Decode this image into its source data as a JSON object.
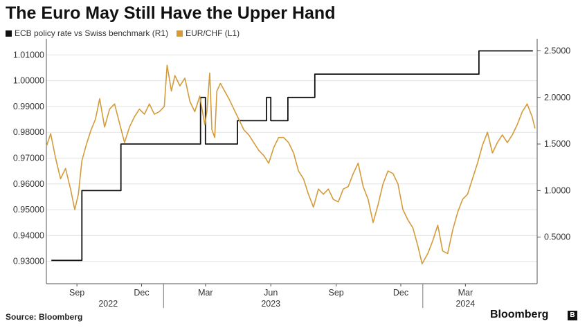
{
  "title": "The Euro May Still Have the Upper Hand",
  "legend": [
    {
      "label": "ECB policy rate vs Swiss benchmark (R1)",
      "color": "#111111"
    },
    {
      "label": "EUR/CHF (L1)",
      "color": "#d39b3a"
    }
  ],
  "source": "Source: Bloomberg",
  "brand": "Bloomberg",
  "brand_badge": "B",
  "chart_data": {
    "type": "line",
    "x_range": [
      "2022-07-20",
      "2024-06-10"
    ],
    "x_ticks": [
      {
        "date": "2022-09-01",
        "label": "Sep"
      },
      {
        "date": "2022-12-01",
        "label": "Dec"
      },
      {
        "date": "2023-03-01",
        "label": "Mar"
      },
      {
        "date": "2023-06-01",
        "label": "Jun"
      },
      {
        "date": "2023-09-01",
        "label": "Sep"
      },
      {
        "date": "2023-12-01",
        "label": "Dec"
      },
      {
        "date": "2024-03-01",
        "label": "Mar"
      }
    ],
    "year_labels": [
      {
        "date": "2022-10-15",
        "label": "2022"
      },
      {
        "date": "2023-06-01",
        "label": "2023"
      },
      {
        "date": "2024-03-01",
        "label": "2024"
      }
    ],
    "year_separators": [
      "2023-01-01",
      "2024-01-01"
    ],
    "left_axis": {
      "min": 0.9213,
      "max": 1.0152,
      "ticks": [
        "0.93000",
        "0.94000",
        "0.95000",
        "0.96000",
        "0.97000",
        "0.98000",
        "0.99000",
        "1.00000",
        "1.01000"
      ]
    },
    "right_axis": {
      "min": 0.0,
      "max": 2.6,
      "ticks": [
        "0.5000",
        "1.0000",
        "1.5000",
        "2.0000",
        "2.5000"
      ]
    },
    "grid": true,
    "legend_position": "top-left",
    "series": [
      {
        "name": "ECB policy rate vs Swiss benchmark (R1)",
        "axis": "right",
        "color": "#111111",
        "step": true,
        "points": [
          [
            "2022-07-27",
            0.25
          ],
          [
            "2022-09-08",
            1.0
          ],
          [
            "2022-11-02",
            1.5
          ],
          [
            "2022-12-21",
            1.5
          ],
          [
            "2023-02-08",
            1.5
          ],
          [
            "2023-02-22",
            2.0
          ],
          [
            "2023-03-01",
            1.5
          ],
          [
            "2023-04-15",
            1.75
          ],
          [
            "2023-05-26",
            2.0
          ],
          [
            "2023-06-01",
            1.75
          ],
          [
            "2023-06-25",
            2.0
          ],
          [
            "2023-08-02",
            2.25
          ],
          [
            "2024-03-20",
            2.5
          ],
          [
            "2024-06-04",
            2.5
          ]
        ]
      },
      {
        "name": "EUR/CHF (L1)",
        "axis": "left",
        "color": "#d39b3a",
        "step": false,
        "points": [
          [
            "2022-07-20",
            0.9745
          ],
          [
            "2022-07-26",
            0.9795
          ],
          [
            "2022-08-02",
            0.97
          ],
          [
            "2022-08-09",
            0.962
          ],
          [
            "2022-08-16",
            0.966
          ],
          [
            "2022-08-23",
            0.958
          ],
          [
            "2022-08-29",
            0.95
          ],
          [
            "2022-09-03",
            0.956
          ],
          [
            "2022-09-08",
            0.969
          ],
          [
            "2022-09-14",
            0.975
          ],
          [
            "2022-09-21",
            0.981
          ],
          [
            "2022-09-27",
            0.985
          ],
          [
            "2022-10-03",
            0.993
          ],
          [
            "2022-10-10",
            0.982
          ],
          [
            "2022-10-17",
            0.989
          ],
          [
            "2022-10-24",
            0.991
          ],
          [
            "2022-10-31",
            0.9835
          ],
          [
            "2022-11-07",
            0.976
          ],
          [
            "2022-11-14",
            0.982
          ],
          [
            "2022-11-21",
            0.986
          ],
          [
            "2022-11-28",
            0.989
          ],
          [
            "2022-12-05",
            0.987
          ],
          [
            "2022-12-12",
            0.991
          ],
          [
            "2022-12-19",
            0.987
          ],
          [
            "2022-12-26",
            0.988
          ],
          [
            "2023-01-02",
            0.99
          ],
          [
            "2023-01-06",
            1.006
          ],
          [
            "2023-01-12",
            0.996
          ],
          [
            "2023-01-17",
            1.002
          ],
          [
            "2023-01-24",
            0.998
          ],
          [
            "2023-01-31",
            1.001
          ],
          [
            "2023-02-07",
            0.992
          ],
          [
            "2023-02-14",
            0.988
          ],
          [
            "2023-02-21",
            0.994
          ],
          [
            "2023-02-28",
            0.983
          ],
          [
            "2023-03-03",
            0.988
          ],
          [
            "2023-03-07",
            1.003
          ],
          [
            "2023-03-10",
            0.981
          ],
          [
            "2023-03-14",
            0.978
          ],
          [
            "2023-03-17",
            0.996
          ],
          [
            "2023-03-22",
            0.999
          ],
          [
            "2023-03-28",
            0.996
          ],
          [
            "2023-04-03",
            0.993
          ],
          [
            "2023-04-10",
            0.989
          ],
          [
            "2023-04-17",
            0.985
          ],
          [
            "2023-04-24",
            0.981
          ],
          [
            "2023-05-01",
            0.979
          ],
          [
            "2023-05-08",
            0.976
          ],
          [
            "2023-05-15",
            0.973
          ],
          [
            "2023-05-22",
            0.971
          ],
          [
            "2023-05-29",
            0.968
          ],
          [
            "2023-06-05",
            0.974
          ],
          [
            "2023-06-12",
            0.978
          ],
          [
            "2023-06-19",
            0.978
          ],
          [
            "2023-06-26",
            0.976
          ],
          [
            "2023-07-03",
            0.972
          ],
          [
            "2023-07-10",
            0.965
          ],
          [
            "2023-07-17",
            0.962
          ],
          [
            "2023-07-24",
            0.956
          ],
          [
            "2023-07-31",
            0.951
          ],
          [
            "2023-08-07",
            0.958
          ],
          [
            "2023-08-14",
            0.956
          ],
          [
            "2023-08-21",
            0.958
          ],
          [
            "2023-08-28",
            0.954
          ],
          [
            "2023-09-04",
            0.953
          ],
          [
            "2023-09-11",
            0.958
          ],
          [
            "2023-09-18",
            0.959
          ],
          [
            "2023-09-25",
            0.964
          ],
          [
            "2023-10-02",
            0.968
          ],
          [
            "2023-10-09",
            0.959
          ],
          [
            "2023-10-16",
            0.954
          ],
          [
            "2023-10-23",
            0.945
          ],
          [
            "2023-10-30",
            0.952
          ],
          [
            "2023-11-06",
            0.96
          ],
          [
            "2023-11-13",
            0.965
          ],
          [
            "2023-11-20",
            0.964
          ],
          [
            "2023-11-27",
            0.96
          ],
          [
            "2023-12-04",
            0.95
          ],
          [
            "2023-12-11",
            0.946
          ],
          [
            "2023-12-18",
            0.943
          ],
          [
            "2023-12-25",
            0.936
          ],
          [
            "2023-12-31",
            0.929
          ],
          [
            "2024-01-08",
            0.933
          ],
          [
            "2024-01-15",
            0.938
          ],
          [
            "2024-01-22",
            0.944
          ],
          [
            "2024-01-29",
            0.934
          ],
          [
            "2024-02-05",
            0.933
          ],
          [
            "2024-02-12",
            0.942
          ],
          [
            "2024-02-19",
            0.949
          ],
          [
            "2024-02-26",
            0.954
          ],
          [
            "2024-03-04",
            0.956
          ],
          [
            "2024-03-11",
            0.962
          ],
          [
            "2024-03-18",
            0.968
          ],
          [
            "2024-03-25",
            0.975
          ],
          [
            "2024-04-01",
            0.98
          ],
          [
            "2024-04-08",
            0.972
          ],
          [
            "2024-04-15",
            0.976
          ],
          [
            "2024-04-22",
            0.979
          ],
          [
            "2024-04-29",
            0.976
          ],
          [
            "2024-05-06",
            0.979
          ],
          [
            "2024-05-13",
            0.983
          ],
          [
            "2024-05-20",
            0.988
          ],
          [
            "2024-05-27",
            0.991
          ],
          [
            "2024-06-03",
            0.986
          ],
          [
            "2024-06-07",
            0.9815
          ]
        ]
      }
    ]
  }
}
